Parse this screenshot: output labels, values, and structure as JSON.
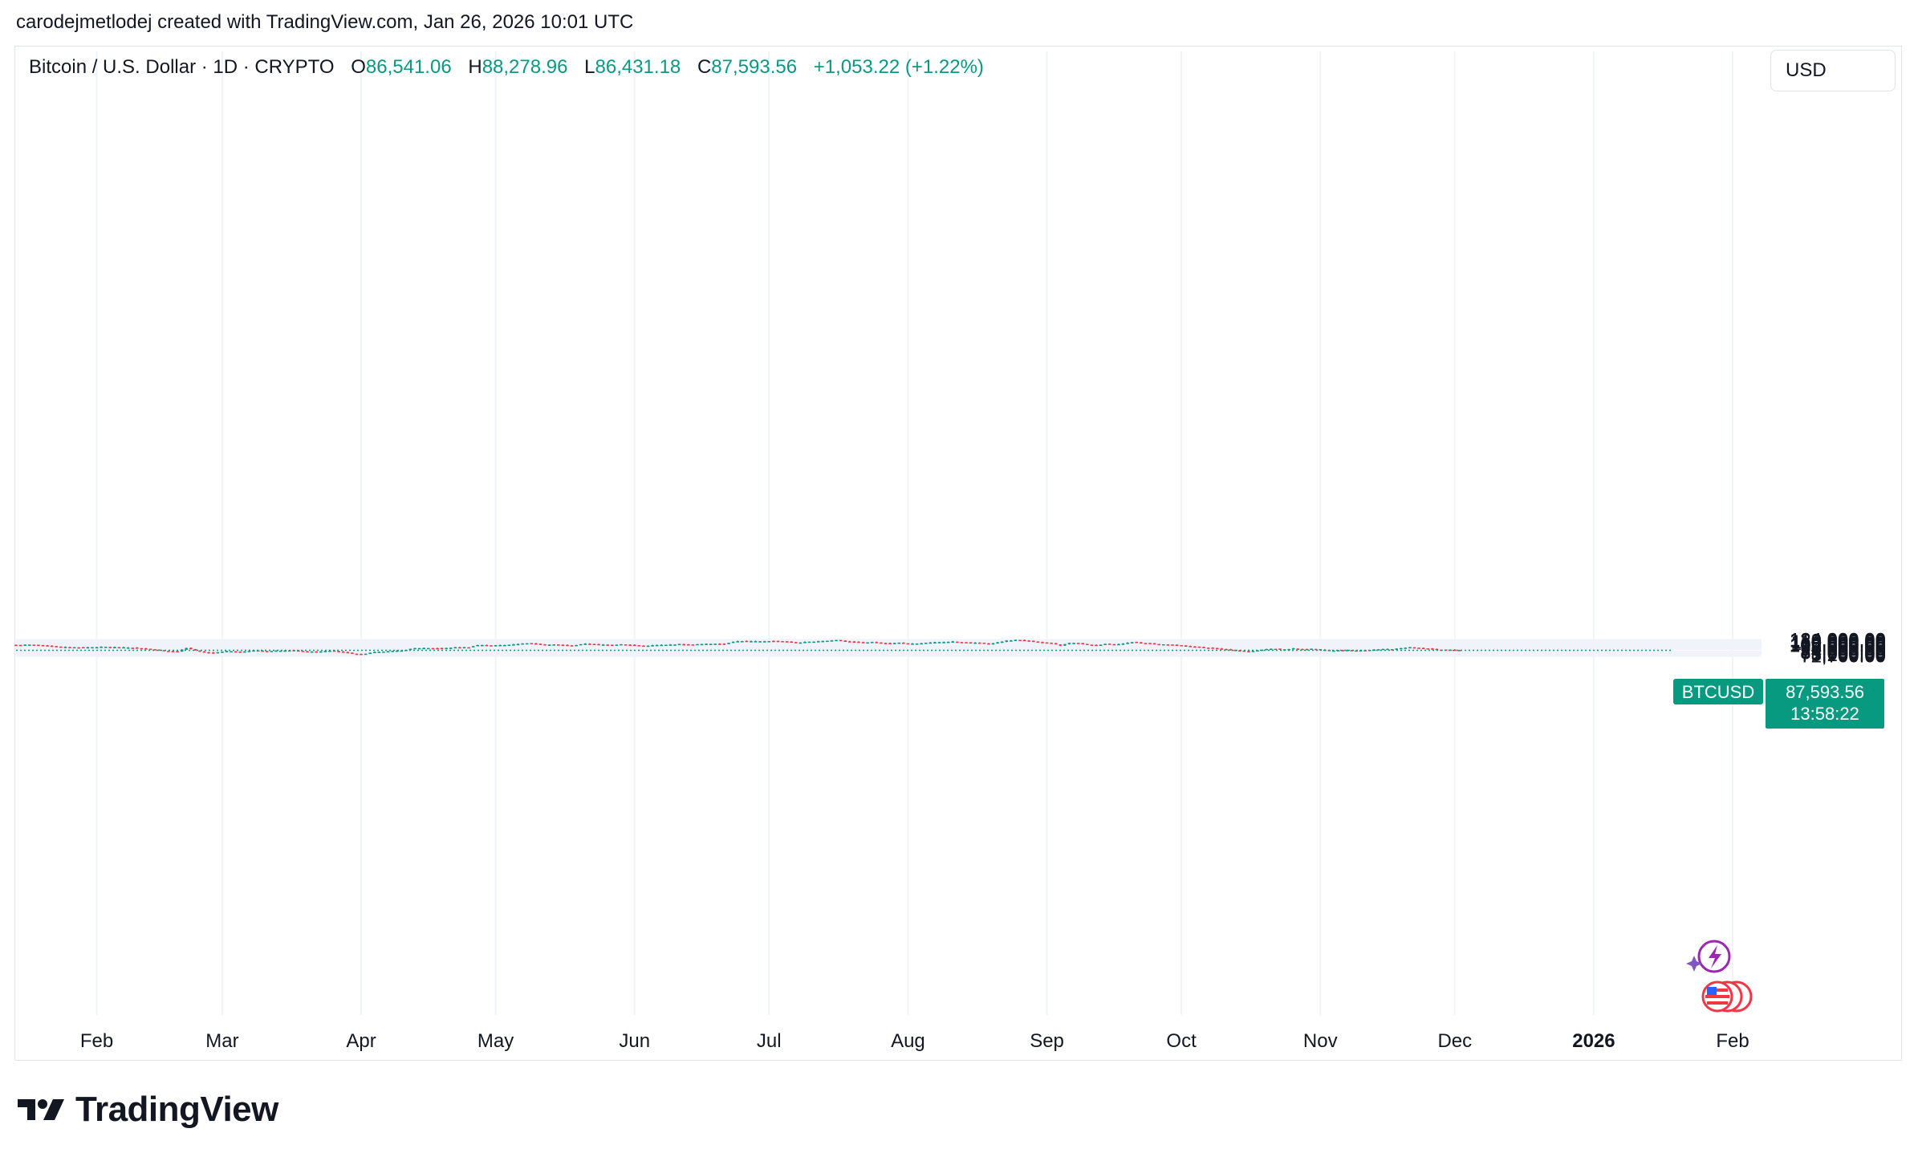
{
  "caption": "carodejmetlodej created with TradingView.com, Jan 26, 2026 10:01 UTC",
  "legend": {
    "symbol": "Bitcoin / U.S. Dollar · 1D · CRYPTO",
    "open_label": "O",
    "open": "86,541.06",
    "high_label": "H",
    "high": "88,278.96",
    "low_label": "L",
    "low": "86,431.18",
    "close_label": "C",
    "close": "87,593.56",
    "change": "+1,053.22 (+1.22%)"
  },
  "currency_button": "USD",
  "price_tag": {
    "symbol": "BTCUSD",
    "price": "87,593.56",
    "countdown": "13:58:22"
  },
  "brand": "TradingView",
  "colors": {
    "up": "#089981",
    "down": "#f23645",
    "grid": "#f0f3fa",
    "text": "#131722",
    "dotted_line": "#089981",
    "event_icon": "#9c27b0"
  },
  "icons": [
    "lightning-event-icon",
    "us-flag-event-icon"
  ],
  "chart_data": {
    "type": "candlestick",
    "symbol": "Bitcoin / U.S. Dollar",
    "interval": "1D",
    "y_scale": "log",
    "ylim": [
      70000,
      128000
    ],
    "last_price": 87593.56,
    "y_ticks": [
      {
        "label": "124,000.00",
        "value": 124000
      },
      {
        "label": "120,000.00",
        "value": 120000
      },
      {
        "label": "115,000.00",
        "value": 115000
      },
      {
        "label": "110,000.00",
        "value": 110000
      },
      {
        "label": "106,000.00",
        "value": 106000
      },
      {
        "label": "102,000.00",
        "value": 102000
      },
      {
        "label": "98,000.00",
        "value": 98000
      },
      {
        "label": "94,000.00",
        "value": 94000
      },
      {
        "label": "90,000.00",
        "value": 90000
      },
      {
        "label": "84,000.00",
        "value": 84000
      },
      {
        "label": "81,000.00",
        "value": 81000
      },
      {
        "label": "78,000.00",
        "value": 78000
      },
      {
        "label": "75,200.00",
        "value": 75200
      },
      {
        "label": "72,700.00",
        "value": 72700
      }
    ],
    "x_ticks": [
      {
        "label": "Feb",
        "index": 18,
        "bold": false
      },
      {
        "label": "Mar",
        "index": 46,
        "bold": false
      },
      {
        "label": "Apr",
        "index": 77,
        "bold": false
      },
      {
        "label": "May",
        "index": 107,
        "bold": false
      },
      {
        "label": "Jun",
        "index": 138,
        "bold": false
      },
      {
        "label": "Jul",
        "index": 168,
        "bold": false
      },
      {
        "label": "Aug",
        "index": 199,
        "bold": false
      },
      {
        "label": "Sep",
        "index": 230,
        "bold": false
      },
      {
        "label": "Oct",
        "index": 260,
        "bold": false
      },
      {
        "label": "Nov",
        "index": 291,
        "bold": false
      },
      {
        "label": "Dec",
        "index": 321,
        "bold": false
      },
      {
        "label": "2026",
        "index": 352,
        "bold": true
      },
      {
        "label": "Feb",
        "index": 383,
        "bold": false
      }
    ],
    "anchors": [
      [
        0,
        104500
      ],
      [
        4,
        105500
      ],
      [
        7,
        102000
      ],
      [
        10,
        97500
      ],
      [
        15,
        96500
      ],
      [
        20,
        98000
      ],
      [
        23,
        96500
      ],
      [
        26,
        95500
      ],
      [
        30,
        91000
      ],
      [
        33,
        86000
      ],
      [
        36,
        84200
      ],
      [
        38,
        95000
      ],
      [
        40,
        86500
      ],
      [
        42,
        82000
      ],
      [
        44,
        80500
      ],
      [
        47,
        85000
      ],
      [
        50,
        83500
      ],
      [
        53,
        87000
      ],
      [
        56,
        84500
      ],
      [
        58,
        86500
      ],
      [
        61,
        87500
      ],
      [
        64,
        85000
      ],
      [
        67,
        83000
      ],
      [
        70,
        86500
      ],
      [
        73,
        82500
      ],
      [
        75,
        78500
      ],
      [
        77,
        76500
      ],
      [
        80,
        83000
      ],
      [
        83,
        85000
      ],
      [
        86,
        86500
      ],
      [
        89,
        94000
      ],
      [
        92,
        94500
      ],
      [
        95,
        93500
      ],
      [
        98,
        96500
      ],
      [
        101,
        97000
      ],
      [
        103,
        104000
      ],
      [
        106,
        103000
      ],
      [
        109,
        104000
      ],
      [
        112,
        108000
      ],
      [
        114,
        111000
      ],
      [
        116,
        109000
      ],
      [
        118,
        105000
      ],
      [
        120,
        106000
      ],
      [
        122,
        104000
      ],
      [
        124,
        102000
      ],
      [
        127,
        109000
      ],
      [
        130,
        106000
      ],
      [
        133,
        105000
      ],
      [
        135,
        107000
      ],
      [
        137,
        104500
      ],
      [
        140,
        101500
      ],
      [
        143,
        104000
      ],
      [
        146,
        105500
      ],
      [
        148,
        107500
      ],
      [
        150,
        106000
      ],
      [
        154,
        108000
      ],
      [
        156,
        109000
      ],
      [
        158,
        108000
      ],
      [
        160,
        117000
      ],
      [
        162,
        119000
      ],
      [
        164,
        118000
      ],
      [
        166,
        117500
      ],
      [
        168,
        119000
      ],
      [
        170,
        118500
      ],
      [
        172,
        116500
      ],
      [
        174,
        112500
      ],
      [
        177,
        116000
      ],
      [
        179,
        118500
      ],
      [
        181,
        120000
      ],
      [
        183,
        123000
      ],
      [
        185,
        118000
      ],
      [
        187,
        116000
      ],
      [
        189,
        113000
      ],
      [
        191,
        115000
      ],
      [
        193,
        111500
      ],
      [
        195,
        110000
      ],
      [
        197,
        112500
      ],
      [
        199,
        108500
      ],
      [
        201,
        109000
      ],
      [
        203,
        112000
      ],
      [
        205,
        113500
      ],
      [
        207,
        115500
      ],
      [
        209,
        117000
      ],
      [
        211,
        114000
      ],
      [
        213,
        112500
      ],
      [
        215,
        112000
      ],
      [
        217,
        108500
      ],
      [
        219,
        113500
      ],
      [
        221,
        120000
      ],
      [
        223,
        123500
      ],
      [
        225,
        121500
      ],
      [
        227,
        117500
      ],
      [
        229,
        113000
      ],
      [
        231,
        110000
      ],
      [
        233,
        102500
      ],
      [
        235,
        111500
      ],
      [
        237,
        111000
      ],
      [
        239,
        105500
      ],
      [
        241,
        103500
      ],
      [
        243,
        108500
      ],
      [
        245,
        107000
      ],
      [
        247,
        109000
      ],
      [
        249,
        115000
      ],
      [
        251,
        112000
      ],
      [
        253,
        110000
      ],
      [
        255,
        106500
      ],
      [
        257,
        106000
      ],
      [
        259,
        103500
      ],
      [
        261,
        101000
      ],
      [
        263,
        98500
      ],
      [
        265,
        96000
      ],
      [
        267,
        94000
      ],
      [
        269,
        91500
      ],
      [
        271,
        89000
      ],
      [
        273,
        86500
      ],
      [
        275,
        84500
      ],
      [
        277,
        87500
      ],
      [
        279,
        91500
      ],
      [
        281,
        92000
      ],
      [
        283,
        90000
      ],
      [
        285,
        93000
      ],
      [
        287,
        90500
      ],
      [
        289,
        92000
      ],
      [
        291,
        89500
      ],
      [
        293,
        87000
      ],
      [
        295,
        87500
      ],
      [
        297,
        88000
      ],
      [
        299,
        87000
      ],
      [
        301,
        87500
      ],
      [
        303,
        90000
      ],
      [
        305,
        91500
      ],
      [
        307,
        90500
      ],
      [
        309,
        94500
      ],
      [
        311,
        96500
      ],
      [
        313,
        95000
      ],
      [
        315,
        92500
      ],
      [
        317,
        89500
      ],
      [
        319,
        89500
      ],
      [
        320,
        88500
      ],
      [
        322,
        87800
      ]
    ]
  }
}
